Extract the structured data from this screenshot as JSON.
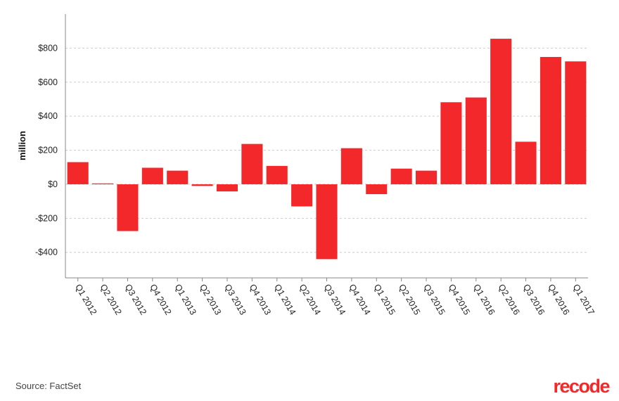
{
  "chart_data": {
    "type": "bar",
    "ylabel": "million",
    "xlabel": "",
    "title": "",
    "ylim": [
      -550,
      1000
    ],
    "yticks": [
      -400,
      -200,
      0,
      200,
      400,
      600,
      800
    ],
    "ytick_labels": [
      "-$400",
      "-$200",
      "$0",
      "$200",
      "$400",
      "$600",
      "$800"
    ],
    "grid": "horizontal dashed",
    "categories": [
      "Q1 2012",
      "Q2 2012",
      "Q3 2012",
      "Q4 2012",
      "Q1 2013",
      "Q2 2013",
      "Q3 2013",
      "Q4 2013",
      "Q1 2014",
      "Q2 2014",
      "Q3 2014",
      "Q4 2014",
      "Q1 2015",
      "Q2 2015",
      "Q3 2015",
      "Q4 2015",
      "Q1 2016",
      "Q2 2016",
      "Q3 2016",
      "Q4 2016",
      "Q1 2017"
    ],
    "values": [
      130,
      5,
      -275,
      97,
      80,
      -10,
      -42,
      237,
      108,
      -130,
      -440,
      212,
      -58,
      92,
      80,
      482,
      510,
      855,
      250,
      748,
      722
    ],
    "bar_color": "#f2282a"
  },
  "footer": {
    "source": "Source: FactSet",
    "logo": "recode",
    "logo_color": "#f2282a"
  }
}
